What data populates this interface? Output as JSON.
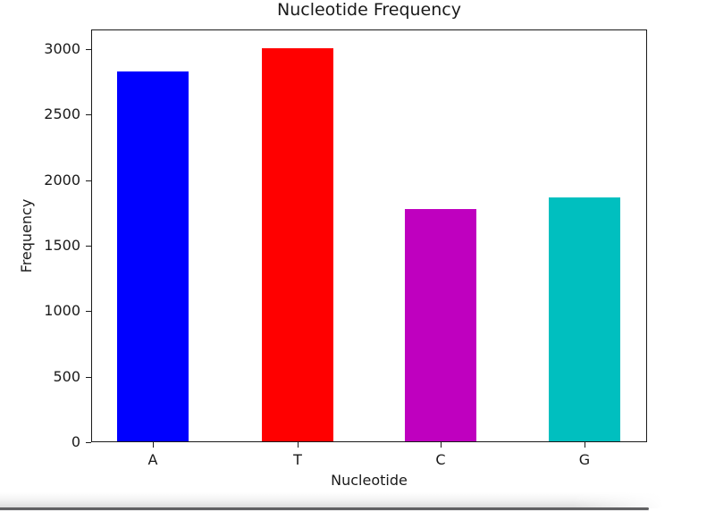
{
  "chart_data": {
    "type": "bar",
    "title": "Nucleotide Frequency",
    "xlabel": "Nucleotide",
    "ylabel": "Frequency",
    "categories": [
      "A",
      "T",
      "C",
      "G"
    ],
    "values": [
      2820,
      3000,
      1770,
      1860
    ],
    "bar_colors": [
      "#0000ff",
      "#ff0000",
      "#bf00bf",
      "#00bfbf"
    ],
    "yticks": [
      0,
      500,
      1000,
      1500,
      2000,
      2500,
      3000
    ],
    "ylim": [
      0,
      3150
    ],
    "grid": false,
    "background_color": "#ffffff",
    "text_color": "#1a1a1a",
    "spine_color": "#1a1a1a"
  },
  "decor": {
    "bottom_bar_color": "#616163",
    "bottom_shadow_color": "#d9d9d9"
  }
}
